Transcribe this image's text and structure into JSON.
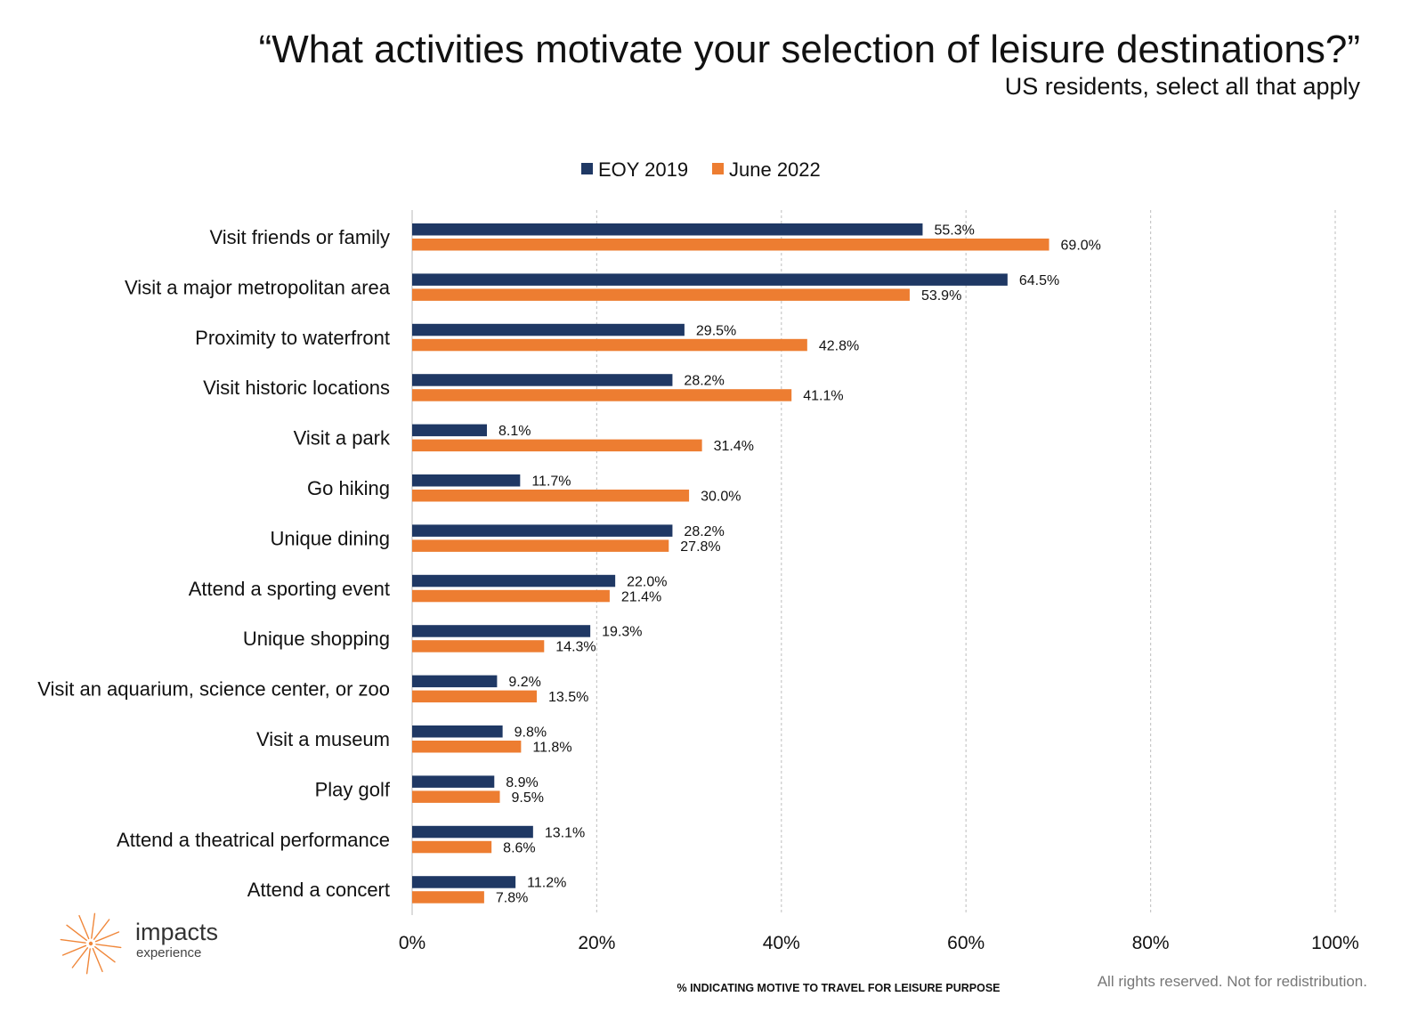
{
  "title": "“What activities motivate your selection of leisure destinations?”",
  "subtitle": "US residents, select all that apply",
  "footer": "All rights reserved. Not for redistribution.",
  "logo": {
    "name": "impacts",
    "sub": "experience",
    "icon": "starburst-icon",
    "color": "#f0873a"
  },
  "colors": {
    "series1": "#1f3864",
    "series2": "#ed7d31",
    "grid": "#c8c8c8",
    "axis": "#d0d0d0"
  },
  "chart_data": {
    "type": "bar",
    "orientation": "horizontal",
    "xlabel": "% INDICATING MOTIVE TO TRAVEL FOR LEISURE PURPOSE",
    "ylabel": "",
    "xlim": [
      0,
      100
    ],
    "ticks": [
      "0%",
      "20%",
      "40%",
      "60%",
      "80%",
      "100%"
    ],
    "tick_values": [
      0,
      20,
      40,
      60,
      80,
      100
    ],
    "grid": "vertical dashed",
    "legend": "top-center",
    "categories": [
      "Visit friends or family",
      "Visit a major metropolitan area",
      "Proximity to waterfront",
      "Visit historic locations",
      "Visit a park",
      "Go hiking",
      "Unique dining",
      "Attend a sporting event",
      "Unique shopping",
      "Visit an aquarium, science center, or zoo",
      "Visit a museum",
      "Play golf",
      "Attend a theatrical performance",
      "Attend a concert"
    ],
    "series": [
      {
        "name": "EOY 2019",
        "values": [
          55.3,
          64.5,
          29.5,
          28.2,
          8.1,
          11.7,
          28.2,
          22.0,
          19.3,
          9.2,
          9.8,
          8.9,
          13.1,
          11.2
        ],
        "labels": [
          "55.3%",
          "64.5%",
          "29.5%",
          "28.2%",
          "8.1%",
          "11.7%",
          "28.2%",
          "22.0%",
          "19.3%",
          "9.2%",
          "9.8%",
          "8.9%",
          "13.1%",
          "11.2%"
        ]
      },
      {
        "name": "June 2022",
        "values": [
          69.0,
          53.9,
          42.8,
          41.1,
          31.4,
          30.0,
          27.8,
          21.4,
          14.3,
          13.5,
          11.8,
          9.5,
          8.6,
          7.8
        ],
        "labels": [
          "69.0%",
          "53.9%",
          "42.8%",
          "41.1%",
          "31.4%",
          "30.0%",
          "27.8%",
          "21.4%",
          "14.3%",
          "13.5%",
          "11.8%",
          "9.5%",
          "8.6%",
          "7.8%"
        ]
      }
    ]
  }
}
